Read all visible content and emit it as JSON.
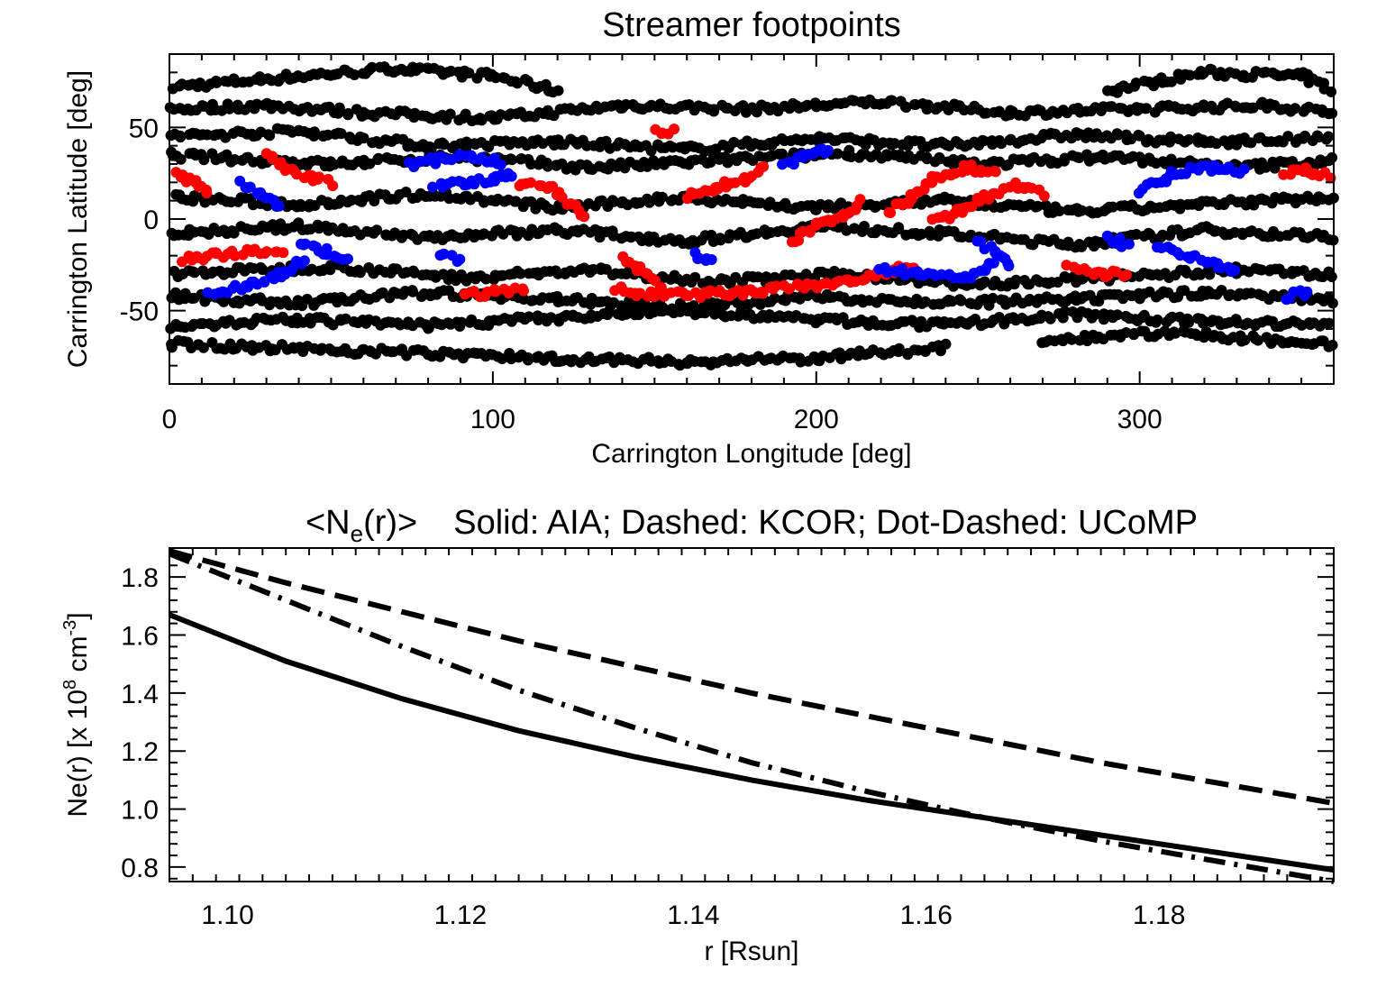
{
  "chart_data": [
    {
      "type": "scatter",
      "title": "Streamer footpoints",
      "xlabel": "Carrington Longitude [deg]",
      "ylabel": "Carrington Latitude [deg]",
      "xlim": [
        0,
        360
      ],
      "ylim": [
        -90,
        90
      ],
      "x_ticks": [
        0,
        100,
        200,
        300
      ],
      "x_tick_labels": [
        "0",
        "100",
        "200",
        "300"
      ],
      "y_ticks": [
        -50,
        0,
        50
      ],
      "y_tick_labels": [
        "-50",
        "0",
        "50"
      ],
      "grid": false,
      "colors": {
        "background_points": "#000000",
        "red_points": "#ff0000",
        "blue_points": "#0000ff"
      },
      "series": [
        {
          "color": "#000000",
          "bands": [
            [
              [
                0,
                72
              ],
              [
                40,
                78
              ],
              [
                70,
                82
              ],
              [
                100,
                78
              ],
              [
                120,
                70
              ]
            ],
            [
              [
                290,
                70
              ],
              [
                320,
                80
              ],
              [
                350,
                78
              ],
              [
                360,
                70
              ]
            ],
            [
              [
                0,
                60
              ],
              [
                30,
                62
              ],
              [
                60,
                58
              ],
              [
                100,
                55
              ],
              [
                140,
                62
              ],
              [
                180,
                60
              ],
              [
                220,
                64
              ],
              [
                260,
                58
              ],
              [
                300,
                60
              ],
              [
                340,
                62
              ],
              [
                360,
                58
              ]
            ],
            [
              [
                0,
                45
              ],
              [
                40,
                48
              ],
              [
                80,
                40
              ],
              [
                120,
                42
              ],
              [
                160,
                38
              ],
              [
                200,
                44
              ],
              [
                240,
                40
              ],
              [
                280,
                46
              ],
              [
                320,
                42
              ],
              [
                360,
                44
              ]
            ],
            [
              [
                0,
                35
              ],
              [
                50,
                30
              ],
              [
                90,
                34
              ],
              [
                130,
                28
              ],
              [
                170,
                32
              ],
              [
                210,
                36
              ],
              [
                250,
                30
              ],
              [
                290,
                34
              ],
              [
                330,
                28
              ],
              [
                360,
                32
              ]
            ],
            [
              [
                0,
                12
              ],
              [
                40,
                8
              ],
              [
                80,
                14
              ],
              [
                120,
                6
              ],
              [
                160,
                12
              ],
              [
                200,
                6
              ],
              [
                240,
                10
              ],
              [
                280,
                4
              ],
              [
                320,
                8
              ],
              [
                360,
                12
              ]
            ],
            [
              [
                0,
                -8
              ],
              [
                40,
                -4
              ],
              [
                80,
                -10
              ],
              [
                120,
                -6
              ],
              [
                160,
                -12
              ],
              [
                200,
                -4
              ],
              [
                240,
                -8
              ],
              [
                280,
                -14
              ],
              [
                320,
                -6
              ],
              [
                360,
                -10
              ]
            ],
            [
              [
                0,
                -30
              ],
              [
                50,
                -26
              ],
              [
                90,
                -32
              ],
              [
                130,
                -28
              ],
              [
                170,
                -34
              ],
              [
                210,
                -30
              ],
              [
                250,
                -36
              ],
              [
                290,
                -32
              ],
              [
                330,
                -28
              ],
              [
                360,
                -30
              ]
            ],
            [
              [
                0,
                -42
              ],
              [
                40,
                -46
              ],
              [
                80,
                -40
              ],
              [
                120,
                -44
              ],
              [
                160,
                -48
              ],
              [
                200,
                -42
              ],
              [
                240,
                -46
              ],
              [
                280,
                -44
              ],
              [
                320,
                -40
              ],
              [
                360,
                -44
              ]
            ],
            [
              [
                0,
                -58
              ],
              [
                40,
                -55
              ],
              [
                80,
                -58
              ],
              [
                120,
                -54
              ],
              [
                160,
                -50
              ],
              [
                200,
                -55
              ],
              [
                240,
                -58
              ],
              [
                280,
                -52
              ],
              [
                320,
                -56
              ],
              [
                360,
                -58
              ]
            ],
            [
              [
                0,
                -68
              ],
              [
                60,
                -72
              ],
              [
                120,
                -76
              ],
              [
                160,
                -78
              ],
              [
                200,
                -76
              ],
              [
                240,
                -70
              ]
            ],
            [
              [
                270,
                -66
              ],
              [
                310,
                -62
              ],
              [
                340,
                -66
              ],
              [
                360,
                -68
              ]
            ]
          ]
        },
        {
          "color": "#ff0000",
          "bands": [
            [
              [
                2,
                24
              ],
              [
                8,
                20
              ],
              [
                12,
                14
              ]
            ],
            [
              [
                30,
                36
              ],
              [
                36,
                28
              ],
              [
                44,
                22
              ],
              [
                50,
                20
              ]
            ],
            [
              [
                4,
                -22
              ],
              [
                15,
                -20
              ],
              [
                25,
                -18
              ],
              [
                35,
                -18
              ]
            ],
            [
              [
                108,
                20
              ],
              [
                118,
                16
              ],
              [
                124,
                8
              ],
              [
                128,
                0
              ]
            ],
            [
              [
                138,
                -38
              ],
              [
                150,
                -42
              ],
              [
                180,
                -40
              ],
              [
                210,
                -34
              ],
              [
                230,
                -26
              ]
            ],
            [
              [
                140,
                -22
              ],
              [
                146,
                -28
              ],
              [
                152,
                -38
              ]
            ],
            [
              [
                160,
                12
              ],
              [
                170,
                18
              ],
              [
                178,
                22
              ],
              [
                184,
                28
              ]
            ],
            [
              [
                192,
                -12
              ],
              [
                200,
                -4
              ],
              [
                208,
                2
              ],
              [
                214,
                10
              ]
            ],
            [
              [
                222,
                4
              ],
              [
                228,
                10
              ],
              [
                236,
                22
              ],
              [
                246,
                28
              ],
              [
                256,
                26
              ]
            ],
            [
              [
                236,
                -2
              ],
              [
                244,
                4
              ],
              [
                252,
                12
              ],
              [
                262,
                18
              ],
              [
                270,
                14
              ]
            ],
            [
              [
                278,
                -26
              ],
              [
                288,
                -30
              ],
              [
                296,
                -30
              ]
            ],
            [
              [
                345,
                26
              ],
              [
                352,
                26
              ],
              [
                360,
                24
              ]
            ],
            [
              [
                150,
                48
              ],
              [
                156,
                48
              ]
            ],
            [
              [
                92,
                -42
              ],
              [
                100,
                -40
              ],
              [
                110,
                -38
              ]
            ]
          ]
        },
        {
          "color": "#0000ff",
          "bands": [
            [
              [
                74,
                30
              ],
              [
                82,
                32
              ],
              [
                90,
                34
              ],
              [
                100,
                32
              ],
              [
                104,
                24
              ]
            ],
            [
              [
                82,
                18
              ],
              [
                92,
                20
              ],
              [
                100,
                22
              ],
              [
                106,
                24
              ]
            ],
            [
              [
                22,
                20
              ],
              [
                28,
                14
              ],
              [
                34,
                6
              ]
            ],
            [
              [
                12,
                -40
              ],
              [
                25,
                -36
              ],
              [
                35,
                -30
              ],
              [
                42,
                -22
              ]
            ],
            [
              [
                40,
                -14
              ],
              [
                48,
                -18
              ],
              [
                55,
                -22
              ]
            ],
            [
              [
                190,
                30
              ],
              [
                198,
                34
              ],
              [
                204,
                38
              ]
            ],
            [
              [
                220,
                -28
              ],
              [
                232,
                -30
              ],
              [
                246,
                -32
              ],
              [
                252,
                -28
              ],
              [
                256,
                -20
              ]
            ],
            [
              [
                250,
                -12
              ],
              [
                256,
                -18
              ],
              [
                260,
                -26
              ]
            ],
            [
              [
                300,
                16
              ],
              [
                310,
                24
              ],
              [
                318,
                28
              ],
              [
                326,
                28
              ],
              [
                332,
                26
              ]
            ],
            [
              [
                306,
                -16
              ],
              [
                316,
                -20
              ],
              [
                324,
                -26
              ],
              [
                330,
                -28
              ]
            ],
            [
              [
                290,
                -10
              ],
              [
                296,
                -14
              ]
            ],
            [
              [
                345,
                -42
              ],
              [
                352,
                -40
              ]
            ],
            [
              [
                162,
                -20
              ],
              [
                168,
                -24
              ]
            ],
            [
              [
                84,
                -20
              ],
              [
                90,
                -22
              ]
            ]
          ]
        }
      ]
    },
    {
      "type": "line",
      "title_prefix": "<N",
      "title_subscript": "e",
      "title_suffix": "(r)>",
      "title_rest": "Solid: AIA; Dashed: KCOR; Dot-Dashed: UCoMP",
      "xlabel": "r [Rsun]",
      "ylabel_prefix": "Ne(r) [x 10",
      "ylabel_sup1": "8",
      "ylabel_mid": " cm",
      "ylabel_sup2": "-3",
      "ylabel_suffix": "]",
      "xlim": [
        1.095,
        1.195
      ],
      "ylim": [
        0.75,
        1.9
      ],
      "x_ticks": [
        1.1,
        1.12,
        1.14,
        1.16,
        1.18
      ],
      "x_tick_labels": [
        "1.10",
        "1.12",
        "1.14",
        "1.16",
        "1.18"
      ],
      "y_ticks": [
        0.8,
        1.0,
        1.2,
        1.4,
        1.6,
        1.8
      ],
      "y_tick_labels": [
        "0.8",
        "1.0",
        "1.2",
        "1.4",
        "1.6",
        "1.8"
      ],
      "grid": false,
      "x": [
        1.095,
        1.105,
        1.115,
        1.125,
        1.135,
        1.145,
        1.155,
        1.165,
        1.175,
        1.185,
        1.195
      ],
      "series": [
        {
          "style": "solid",
          "values": [
            1.67,
            1.51,
            1.38,
            1.27,
            1.18,
            1.1,
            1.03,
            0.97,
            0.91,
            0.85,
            0.79
          ]
        },
        {
          "style": "dashed",
          "values": [
            1.89,
            1.78,
            1.68,
            1.58,
            1.49,
            1.4,
            1.32,
            1.24,
            1.16,
            1.09,
            1.02
          ]
        },
        {
          "style": "dotdash",
          "values": [
            1.88,
            1.72,
            1.56,
            1.41,
            1.28,
            1.16,
            1.06,
            0.97,
            0.89,
            0.82,
            0.75
          ]
        }
      ]
    }
  ]
}
